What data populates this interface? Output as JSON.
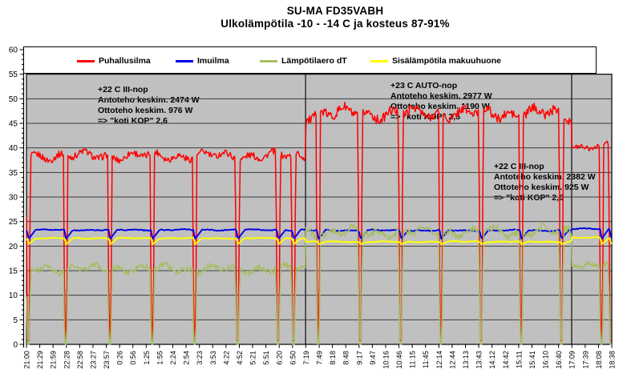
{
  "title": {
    "line1": "SU-MA FD35VABH",
    "line2": "Ulkolämpötila -10 - -14 C ja kosteus 87-91%"
  },
  "legend": {
    "items": [
      {
        "label": "Puhallusilma",
        "color": "#ff0000"
      },
      {
        "label": "Imuilma",
        "color": "#0000e6"
      },
      {
        "label": "Lämpötilaero dT",
        "color": "#a6be64"
      },
      {
        "label": "Sisälämpötila makuuhuone",
        "color": "#ffff00"
      }
    ]
  },
  "annotations": [
    {
      "lines": [
        "+22 C III-nop",
        "Antoteho keskim. 2474 W",
        "Ottoteho keskim. 976 W",
        "=> \"koti KOP\" 2,6"
      ]
    },
    {
      "lines": [
        "+23 C AUTO-nop",
        "Antoteho keskim. 2977 W",
        "Ottoteho keskim. 1190 W",
        "=> \"koti KOP\" 2,5"
      ]
    },
    {
      "lines": [
        "+22 C III-nop",
        "Antoteho keskim. 2382 W",
        "Ottoteho keskim. 925 W",
        "=> \"koti KOP\" 2,6"
      ]
    }
  ],
  "chart_data": {
    "type": "line",
    "title": "SU-MA FD35VABH — Ulkolämpötila -10 - -14 C ja kosteus 87-91%",
    "xlabel": "",
    "ylabel": "",
    "x_tick_labels": [
      "21:00",
      "21:29",
      "21:59",
      "22:28",
      "22:58",
      "23:27",
      "23:57",
      "0:26",
      "0:56",
      "1:25",
      "1:55",
      "2:24",
      "2:54",
      "3:23",
      "3:53",
      "4:22",
      "4:52",
      "5:21",
      "5:51",
      "6:20",
      "6:50",
      "7:19",
      "7:49",
      "8:18",
      "8:48",
      "9:17",
      "9:47",
      "10:16",
      "10:46",
      "11:15",
      "11:45",
      "12:14",
      "12:44",
      "13:13",
      "13:43",
      "14:12",
      "14:42",
      "15:11",
      "15:41",
      "16:10",
      "16:40",
      "17:09",
      "17:39",
      "18:08",
      "18:38"
    ],
    "x_total_minutes": 1298,
    "y_axis": {
      "min": 0,
      "max": 60,
      "major_step": 5,
      "minor_step": 1
    },
    "grid": "horizontal-major",
    "legend_position": "top",
    "plot_bg": "#c0c0c0",
    "gridline_color": "#3c3c3c",
    "phase_dividers_min": [
      619,
      1209
    ],
    "defrost_dips_min": [
      4,
      87,
      185,
      279,
      373,
      468,
      558,
      592,
      647,
      740,
      830,
      919,
      1008,
      1097,
      1186,
      1275,
      1296
    ],
    "phases": [
      {
        "label": "+22 C III-nop",
        "antoteho_keskim_w": 2474,
        "ottoteho_keskim_w": 976,
        "koti_kop": "2,6",
        "start_min": 0,
        "end_min": 619
      },
      {
        "label": "+23 C AUTO-nop",
        "antoteho_keskim_w": 2977,
        "ottoteho_keskim_w": 1190,
        "koti_kop": "2,5",
        "start_min": 619,
        "end_min": 1209
      },
      {
        "label": "+22 C III-nop",
        "antoteho_keskim_w": 2382,
        "ottoteho_keskim_w": 925,
        "koti_kop": "2,6",
        "start_min": 1209,
        "end_min": 1298
      }
    ],
    "series": [
      {
        "name": "Puhallusilma",
        "color": "#ff0000",
        "width": 1.5,
        "baseline_by_phase": [
          38.4,
          47.0,
          40.3
        ],
        "noise_by_phase": [
          1.1,
          1.55,
          0.85
        ],
        "dip_value": 0.8,
        "dip_style": "deep",
        "seed": 1
      },
      {
        "name": "Imuilma",
        "color": "#0000e6",
        "width": 1.9,
        "baseline_by_phase": [
          23.3,
          23.2,
          23.5
        ],
        "noise_by_phase": [
          0.14,
          0.16,
          0.14
        ],
        "dip_value": 21.5,
        "dip_style": "soft",
        "seed": 2
      },
      {
        "name": "Lämpötilaero dT",
        "color": "#a6be64",
        "width": 1.5,
        "baseline_by_phase": [
          15.4,
          22.9,
          16.3
        ],
        "noise_by_phase": [
          1.05,
          1.25,
          0.95
        ],
        "dip_value": -2,
        "dip_style": "deep",
        "seed": 3
      },
      {
        "name": "Sisälämpötila makuuhuone",
        "color": "#ffff00",
        "width": 1.9,
        "baseline_by_phase": [
          21.6,
          20.9,
          21.7
        ],
        "noise_by_phase": [
          0.12,
          0.13,
          0.12
        ],
        "dip_value": 20.4,
        "dip_style": "soft",
        "seed": 4
      }
    ]
  }
}
